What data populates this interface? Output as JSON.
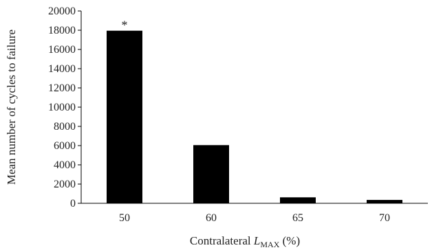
{
  "chart_data": {
    "type": "bar",
    "categories": [
      "50",
      "60",
      "65",
      "70"
    ],
    "values": [
      17950,
      6050,
      620,
      350
    ],
    "ylim": [
      0,
      20000
    ],
    "yticks": [
      0,
      2000,
      4000,
      6000,
      8000,
      10000,
      12000,
      14000,
      16000,
      18000,
      20000
    ],
    "ylabel": "Mean number of cycles to failure",
    "xlabel_main": "Contralateral ",
    "xlabel_var": "L",
    "xlabel_sub": "MAX",
    "xlabel_unit": " (%)",
    "bar_color": "#000000",
    "grid": false,
    "annotations": [
      {
        "category": "50",
        "text": "*"
      }
    ]
  }
}
